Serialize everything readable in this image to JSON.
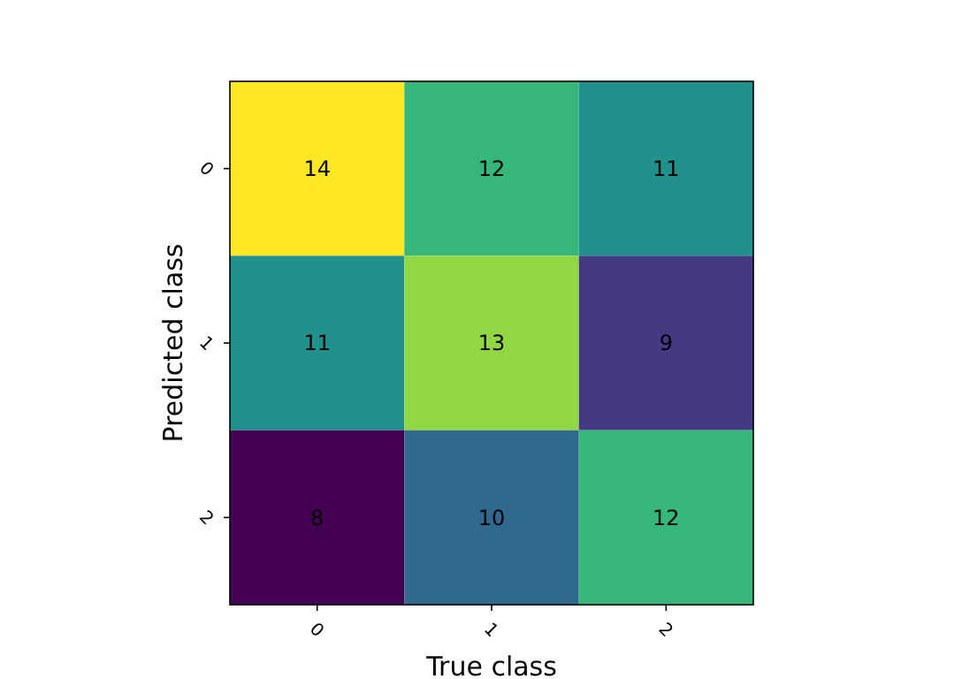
{
  "chart_data": {
    "type": "heatmap",
    "xlabel": "True class",
    "ylabel": "Predicted class",
    "categories": [
      "0",
      "1",
      "2"
    ],
    "y_categories": [
      "0",
      "1",
      "2"
    ],
    "cells": [
      [
        14,
        12,
        11
      ],
      [
        11,
        13,
        9
      ],
      [
        8,
        10,
        12
      ]
    ],
    "data_labels": true
  }
}
